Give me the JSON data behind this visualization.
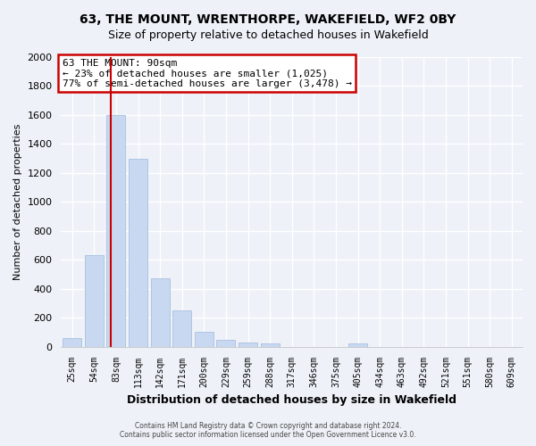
{
  "title": "63, THE MOUNT, WRENTHORPE, WAKEFIELD, WF2 0BY",
  "subtitle": "Size of property relative to detached houses in Wakefield",
  "xlabel": "Distribution of detached houses by size in Wakefield",
  "ylabel": "Number of detached properties",
  "bar_labels": [
    "25sqm",
    "54sqm",
    "83sqm",
    "113sqm",
    "142sqm",
    "171sqm",
    "200sqm",
    "229sqm",
    "259sqm",
    "288sqm",
    "317sqm",
    "346sqm",
    "375sqm",
    "405sqm",
    "434sqm",
    "463sqm",
    "492sqm",
    "521sqm",
    "551sqm",
    "580sqm",
    "609sqm"
  ],
  "bar_values": [
    60,
    630,
    1600,
    1300,
    470,
    250,
    100,
    50,
    30,
    20,
    0,
    0,
    0,
    20,
    0,
    0,
    0,
    0,
    0,
    0,
    0
  ],
  "bar_color": "#c8d8f0",
  "bar_edge_color": "#a8c0e0",
  "annotation_title": "63 THE MOUNT: 90sqm",
  "annotation_line1": "← 23% of detached houses are smaller (1,025)",
  "annotation_line2": "77% of semi-detached houses are larger (3,478) →",
  "annotation_box_color": "#ffffff",
  "annotation_box_edge": "#cc0000",
  "line_color": "#cc0000",
  "ylim": [
    0,
    2000
  ],
  "yticks": [
    0,
    200,
    400,
    600,
    800,
    1000,
    1200,
    1400,
    1600,
    1800,
    2000
  ],
  "property_bar_idx": 2,
  "footer_line1": "Contains HM Land Registry data © Crown copyright and database right 2024.",
  "footer_line2": "Contains public sector information licensed under the Open Government Licence v3.0.",
  "bg_color": "#eef2f8",
  "grid_color": "#ffffff",
  "title_fontsize": 10,
  "subtitle_fontsize": 9
}
